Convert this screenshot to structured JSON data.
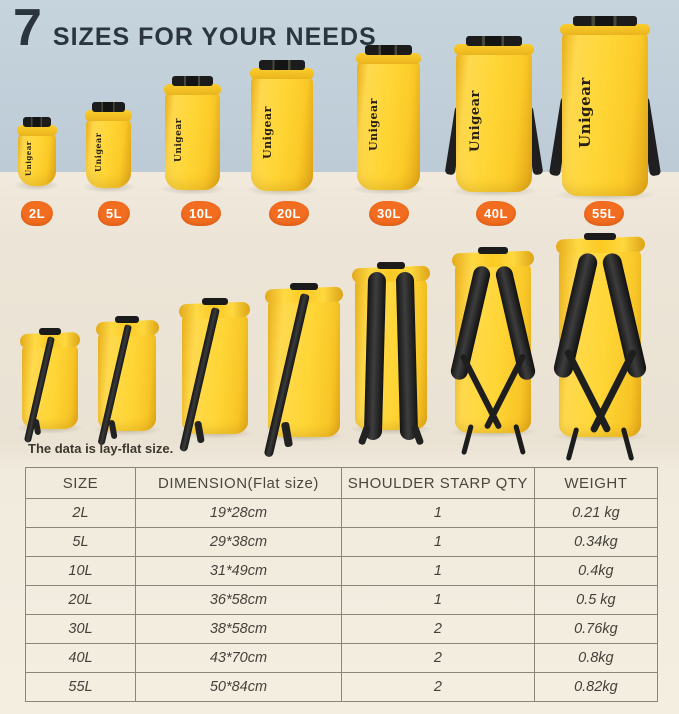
{
  "title": {
    "number": "7",
    "text": "SIZES FOR YOUR NEEDS"
  },
  "brand_logo": "Unigear",
  "size_labels": [
    "2L",
    "5L",
    "10L",
    "20L",
    "30L",
    "40L",
    "55L"
  ],
  "note": "The data is lay-flat size.",
  "table": {
    "headers": [
      "SIZE",
      "DIMENSION(Flat size)",
      "SHOULDER STARP QTY",
      "WEIGHT"
    ],
    "rows": [
      {
        "size": "2L",
        "dimension": "19*28cm",
        "strap_qty": "1",
        "weight": "0.21 kg"
      },
      {
        "size": "5L",
        "dimension": "29*38cm",
        "strap_qty": "1",
        "weight": "0.34kg"
      },
      {
        "size": "10L",
        "dimension": "31*49cm",
        "strap_qty": "1",
        "weight": "0.4kg"
      },
      {
        "size": "20L",
        "dimension": "36*58cm",
        "strap_qty": "1",
        "weight": "0.5 kg"
      },
      {
        "size": "30L",
        "dimension": "38*58cm",
        "strap_qty": "2",
        "weight": "0.76kg"
      },
      {
        "size": "40L",
        "dimension": "43*70cm",
        "strap_qty": "2",
        "weight": "0.8kg"
      },
      {
        "size": "55L",
        "dimension": "50*84cm",
        "strap_qty": "2",
        "weight": "0.82kg"
      }
    ]
  },
  "colors": {
    "sky": "#c6d4dd",
    "floor": "#efe8da",
    "bag_yellow": "#ffd636",
    "badge_orange": "#f26d1f",
    "title_text": "#2b353e",
    "table_line": "#8d8678",
    "text_dark": "#3b372d"
  }
}
